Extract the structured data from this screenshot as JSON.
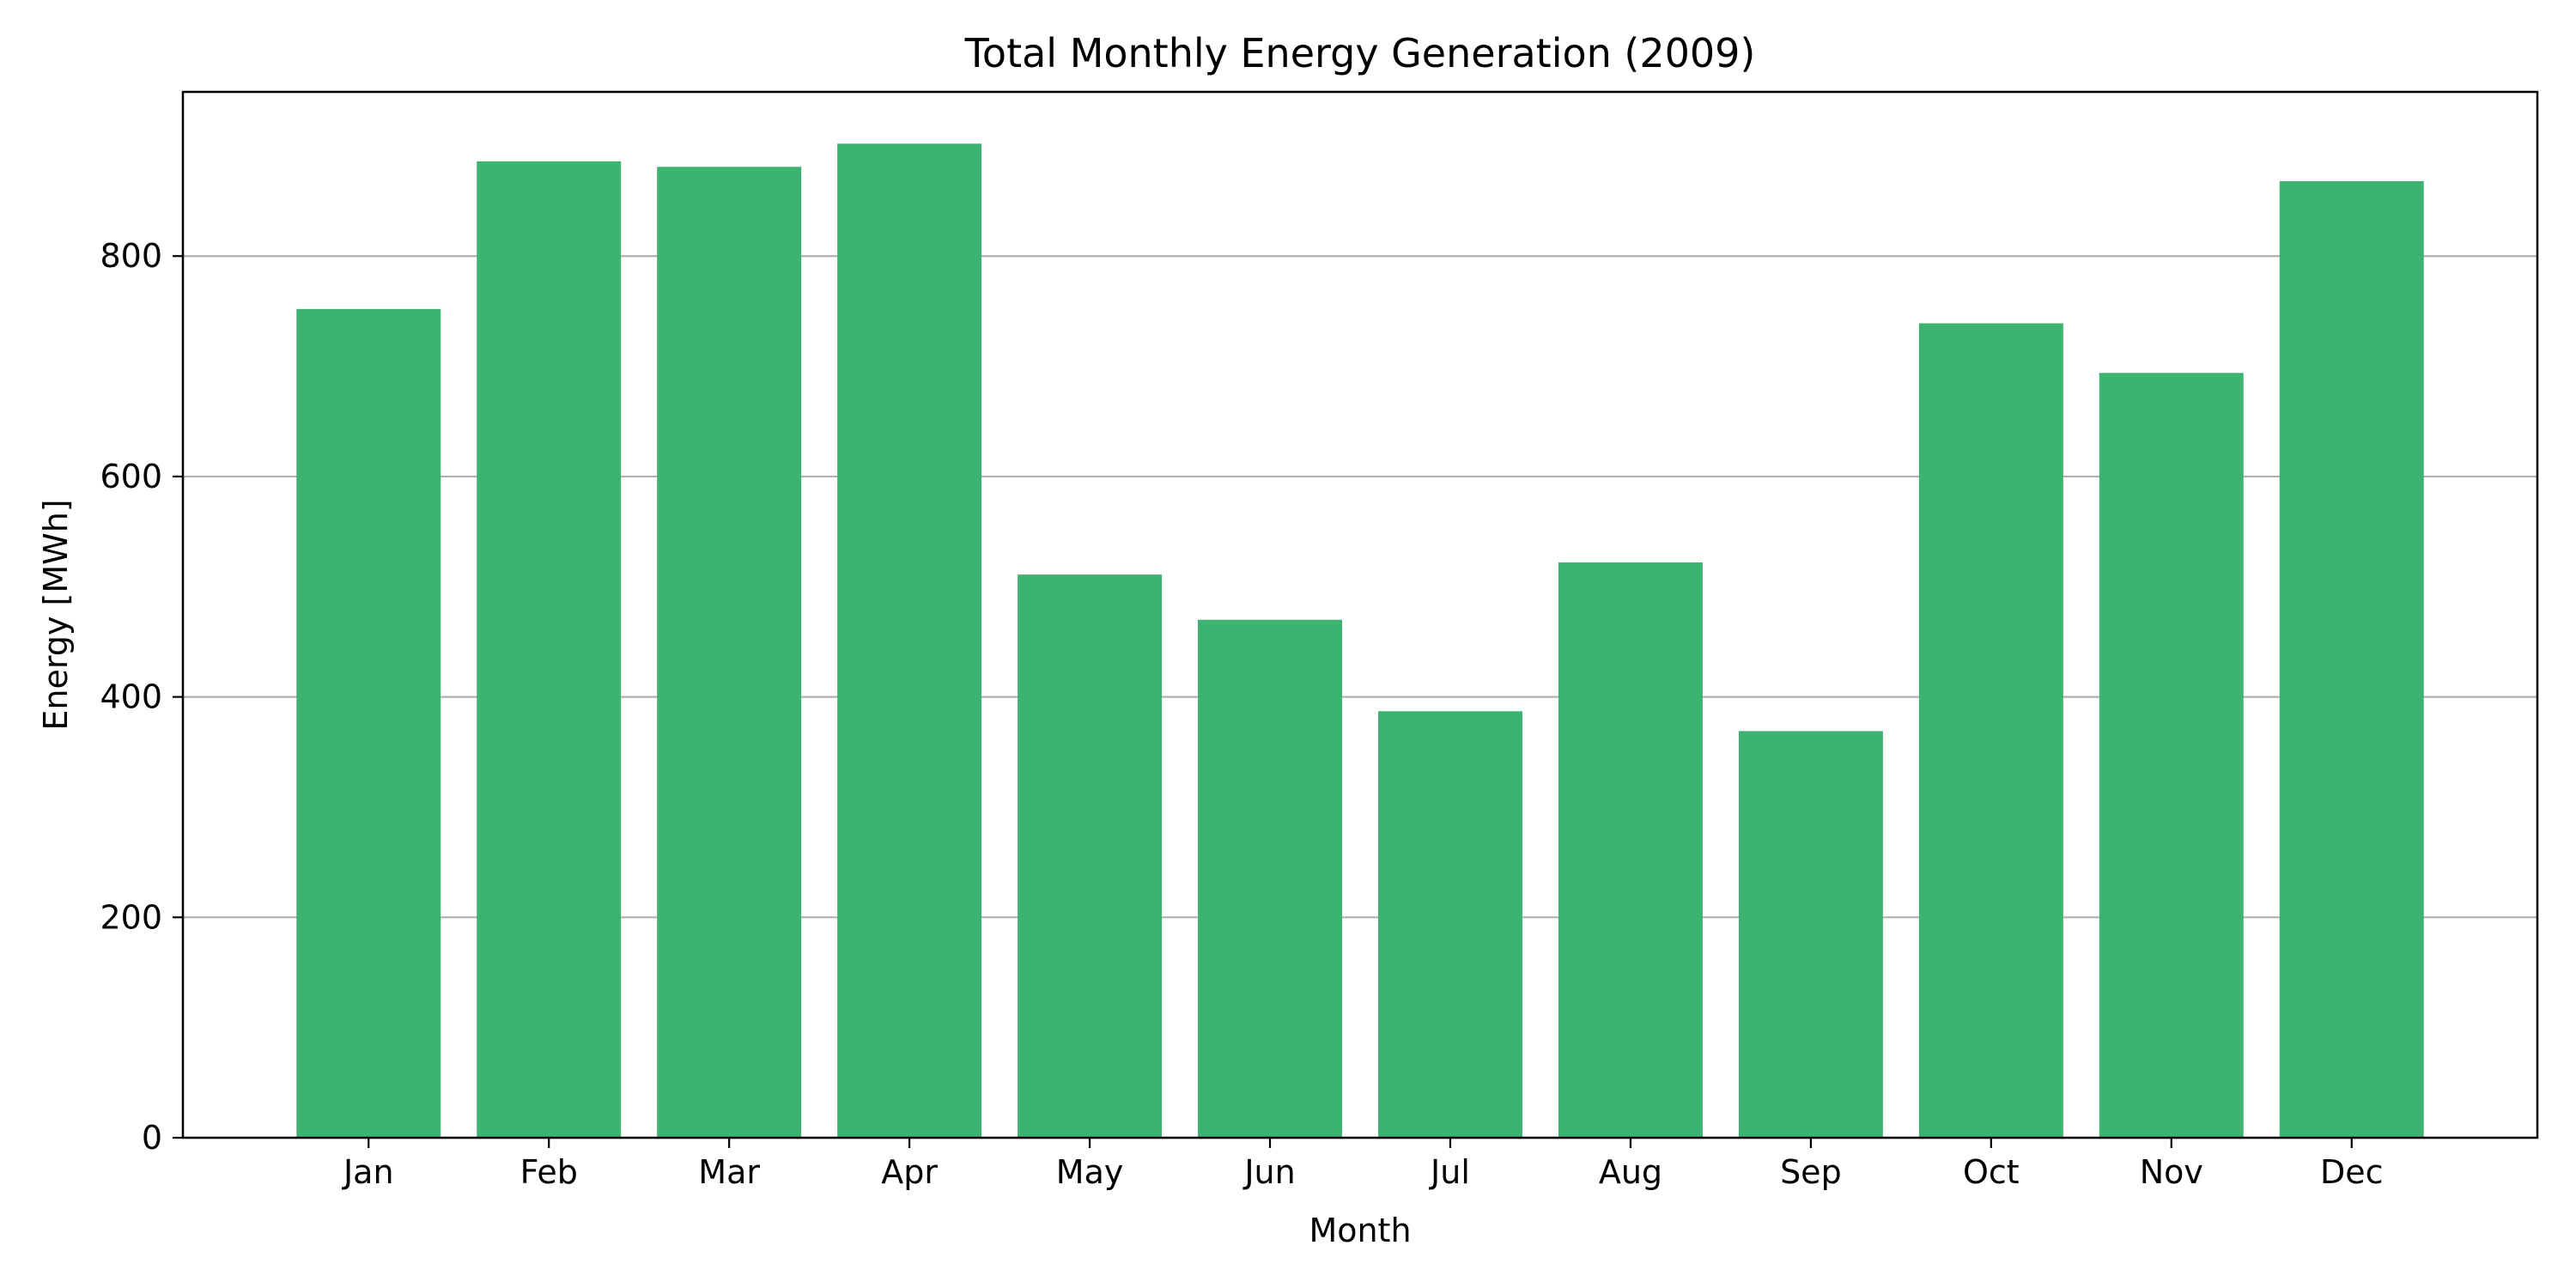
{
  "chart_data": {
    "type": "bar",
    "title": "Total Monthly Energy Generation (2009)",
    "xlabel": "Month",
    "ylabel": "Energy [MWh]",
    "categories": [
      "Jan",
      "Feb",
      "Mar",
      "Apr",
      "May",
      "Jun",
      "Jul",
      "Aug",
      "Sep",
      "Oct",
      "Nov",
      "Dec"
    ],
    "values": [
      752,
      886,
      881,
      902,
      511,
      470,
      387,
      522,
      369,
      739,
      694,
      868
    ],
    "ylim": [
      0,
      949
    ],
    "yticks": [
      0,
      200,
      400,
      600,
      800
    ],
    "grid": "y",
    "legend": "none",
    "bar_color": "#3cb371"
  }
}
